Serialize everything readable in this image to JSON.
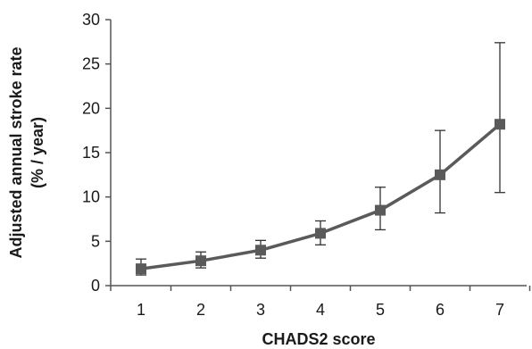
{
  "chart_data": {
    "type": "line",
    "xlabel": "CHADS2 score",
    "ylabel_line1": "Adjusted  annual  stroke rate",
    "ylabel_line2": "(% / year)",
    "categories": [
      1,
      2,
      3,
      4,
      5,
      6,
      7
    ],
    "y_ticks": [
      0,
      5,
      10,
      15,
      20,
      25,
      30
    ],
    "ylim": [
      0,
      30
    ],
    "grid": false,
    "series": [
      {
        "values": [
          1.9,
          2.8,
          4.0,
          5.9,
          8.5,
          12.5,
          18.2
        ],
        "error_low": [
          1.2,
          2.0,
          3.1,
          4.6,
          6.3,
          8.2,
          10.5
        ],
        "error_high": [
          3.0,
          3.8,
          5.1,
          7.3,
          11.1,
          17.5,
          27.4
        ],
        "color": "#5a5a5a"
      }
    ],
    "axis_color": "#555555"
  }
}
